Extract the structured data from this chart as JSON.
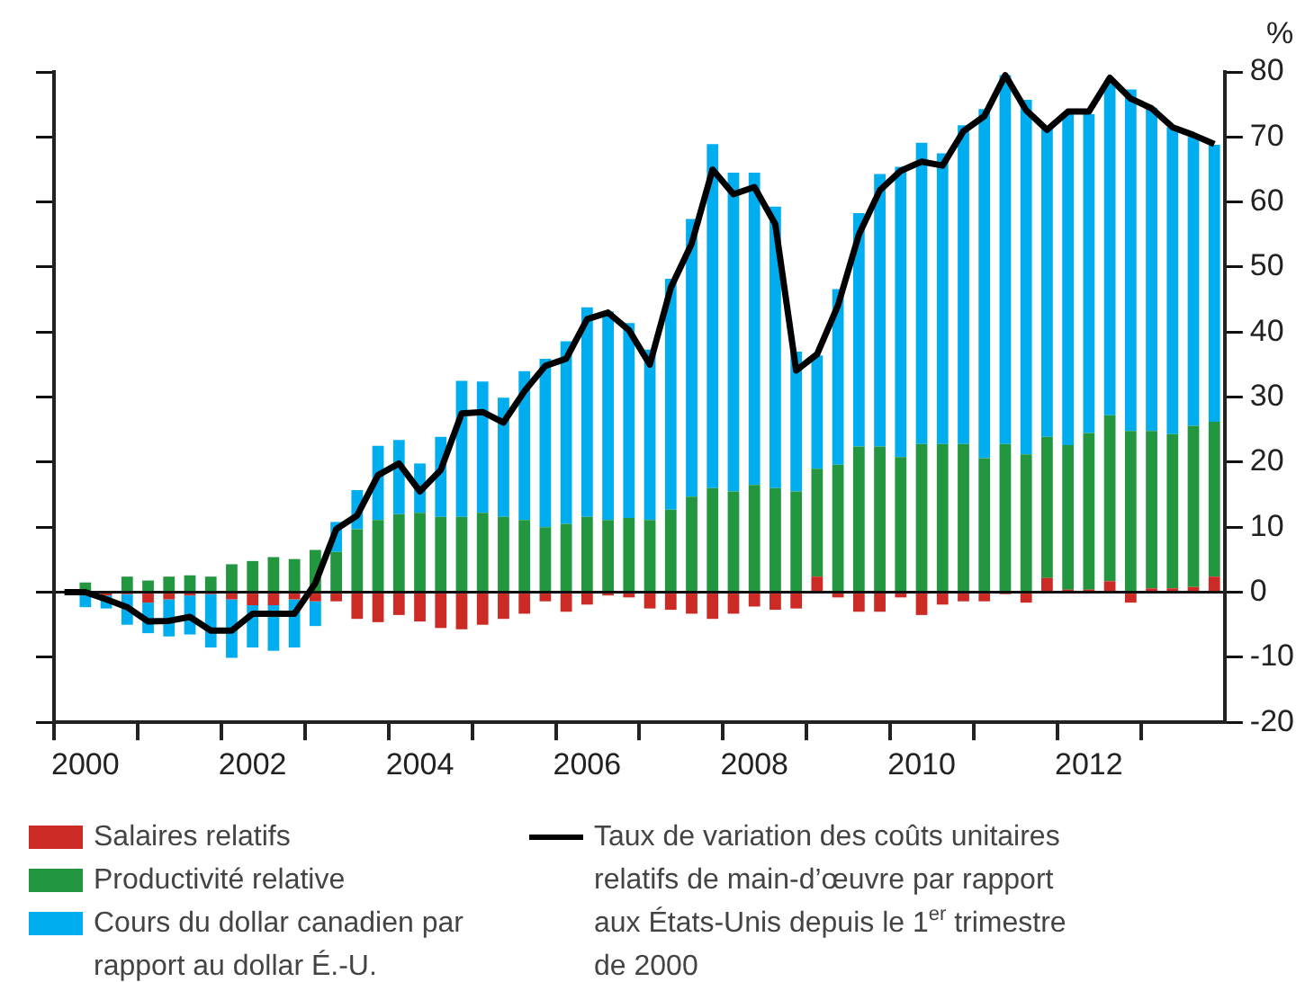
{
  "chart_data": {
    "type": "bar",
    "stacked": true,
    "ylabel": "%",
    "legend": "bottom",
    "ylim": [
      -20,
      80
    ],
    "yticks": [
      -20,
      -10,
      0,
      10,
      20,
      30,
      40,
      50,
      60,
      70,
      80
    ],
    "categories": [
      null,
      "2000",
      null,
      null,
      null,
      null,
      null,
      null,
      null,
      "2002",
      null,
      null,
      null,
      null,
      null,
      null,
      null,
      "2004",
      null,
      null,
      null,
      null,
      null,
      null,
      null,
      "2006",
      null,
      null,
      null,
      null,
      null,
      null,
      null,
      "2008",
      null,
      null,
      null,
      null,
      null,
      null,
      null,
      "2010",
      null,
      null,
      null,
      null,
      null,
      null,
      null,
      "2012",
      null,
      null,
      null,
      null,
      null,
      null
    ],
    "series": [
      {
        "name": "Salaires relatifs",
        "color": "#cc2a24",
        "values": [
          0,
          0,
          -0.5,
          -0.3,
          -1.6,
          -1.1,
          -0.5,
          -0.3,
          -1.1,
          -2.0,
          -2.0,
          -1.1,
          -1.4,
          -1.4,
          -4.1,
          -4.6,
          -3.5,
          -4.5,
          -5.5,
          -5.7,
          -5.0,
          -4.1,
          -3.3,
          -1.4,
          -3.0,
          -1.9,
          -0.5,
          -0.8,
          -2.5,
          -2.7,
          -3.3,
          -4.1,
          -3.3,
          -2.2,
          -2.7,
          -2.5,
          2.4,
          -0.8,
          -3.0,
          -3.0,
          -0.8,
          -3.5,
          -1.9,
          -1.4,
          -1.4,
          -0.3,
          -1.6,
          2.2,
          0.4,
          0.4,
          1.7,
          -1.6,
          0.6,
          0.6,
          0.8,
          2.4
        ]
      },
      {
        "name": "Productivité relative",
        "color": "#239640",
        "values": [
          0,
          1.5,
          0,
          2.4,
          1.8,
          2.4,
          2.6,
          2.4,
          4.3,
          4.8,
          5.4,
          5.1,
          6.5,
          6.2,
          9.7,
          11.1,
          12.0,
          12.2,
          11.6,
          11.6,
          12.2,
          11.6,
          11.1,
          10.0,
          10.5,
          11.6,
          11.1,
          11.4,
          11.1,
          12.7,
          14.7,
          16.0,
          15.5,
          16.5,
          16.0,
          15.5,
          16.6,
          19.6,
          22.4,
          22.4,
          20.8,
          22.8,
          22.8,
          22.8,
          20.6,
          22.8,
          21.2,
          21.7,
          22.2,
          24.1,
          25.5,
          24.8,
          24.2,
          23.7,
          24.8,
          23.8
        ]
      },
      {
        "name": "Cours du dollar canadien par rapport au dollar É.-U.",
        "color": "#00aeef",
        "values": [
          0,
          -2.3,
          -2.0,
          -4.7,
          -4.7,
          -5.7,
          -6.0,
          -8.2,
          -9.0,
          -6.5,
          -7.0,
          -7.4,
          -3.8,
          4.6,
          6.0,
          11.4,
          11.4,
          7.6,
          12.3,
          20.9,
          20.2,
          18.3,
          22.9,
          25.9,
          28.1,
          32.2,
          32.1,
          30.0,
          26.2,
          35.5,
          42.7,
          52.9,
          49.0,
          48.0,
          43.3,
          21.5,
          17.4,
          27.0,
          35.9,
          41.9,
          44.6,
          46.3,
          44.7,
          49.0,
          53.7,
          56.7,
          54.5,
          47.5,
          50.9,
          49.0,
          51.4,
          52.5,
          49.7,
          47.2,
          44.4,
          42.6
        ]
      },
      {
        "type": "line",
        "name": "Taux de variation des coûts unitaires relatifs de main-d’œuvre par rapport aux États-Unis depuis le 1$^{er}$ trimestre de 2000",
        "color": "#000000",
        "values": [
          0,
          0,
          -1.1,
          -2.3,
          -4.5,
          -4.4,
          -3.8,
          -5.9,
          -5.9,
          -3.3,
          -3.3,
          -3.3,
          1.4,
          9.7,
          11.8,
          18.0,
          19.8,
          15.5,
          18.8,
          27.5,
          27.7,
          26.1,
          30.9,
          34.8,
          35.9,
          42.0,
          43.0,
          40.3,
          35.0,
          46.8,
          53.6,
          65.0,
          61.2,
          62.3,
          56.6,
          34.1,
          36.6,
          44.1,
          55.0,
          61.8,
          64.8,
          66.2,
          65.6,
          70.9,
          73.2,
          79.5,
          74.1,
          71.1,
          73.9,
          73.9,
          79.1,
          75.9,
          74.4,
          71.5,
          70.3,
          68.9
        ]
      }
    ]
  }
}
